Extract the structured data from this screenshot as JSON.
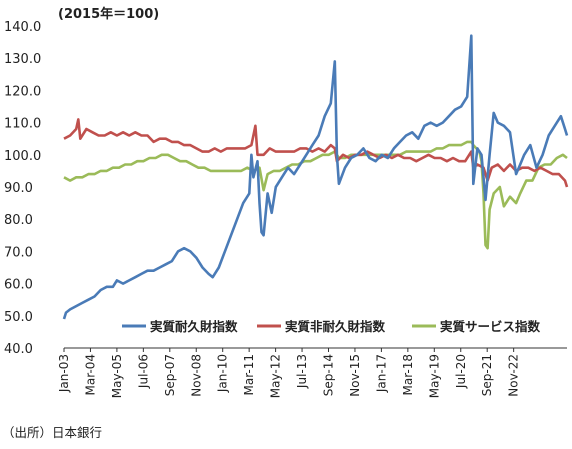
{
  "chart_data": {
    "type": "line",
    "title": "",
    "unit_label": "(2015年＝100)",
    "xlabel": "",
    "ylabel": "",
    "ylim": [
      40.0,
      140.0
    ],
    "yticks": [
      "140.0",
      "130.0",
      "120.0",
      "110.0",
      "100.0",
      "90.0",
      "80.0",
      "70.0",
      "60.0",
      "50.0",
      "40.0"
    ],
    "xtick_labels": [
      "Jan-03",
      "Mar-04",
      "May-05",
      "Jul-06",
      "Sep-07",
      "Nov-08",
      "Jan-10",
      "Mar-11",
      "May-12",
      "Jul-13",
      "Sep-14",
      "Nov-15",
      "Jan-17",
      "Mar-18",
      "May-19",
      "Jul-20",
      "Sep-21",
      "Nov-22"
    ],
    "legend_position": "inside-bottom",
    "grid": false,
    "source_note": "（出所）日本銀行",
    "colors": {
      "line1": "#4a7bb7",
      "line2": "#c0504d",
      "line3": "#9bbb59",
      "axis": "#333333"
    },
    "series": [
      {
        "name": "実質耐久財指数",
        "points": [
          [
            "2003-01",
            49
          ],
          [
            "2003-02",
            51
          ],
          [
            "2003-04",
            52
          ],
          [
            "2003-07",
            53
          ],
          [
            "2003-10",
            54
          ],
          [
            "2004-01",
            55
          ],
          [
            "2004-04",
            56
          ],
          [
            "2004-07",
            58
          ],
          [
            "2004-10",
            59
          ],
          [
            "2005-01",
            59
          ],
          [
            "2005-03",
            61
          ],
          [
            "2005-06",
            60
          ],
          [
            "2005-09",
            61
          ],
          [
            "2005-12",
            62
          ],
          [
            "2006-03",
            63
          ],
          [
            "2006-06",
            64
          ],
          [
            "2006-09",
            64
          ],
          [
            "2006-12",
            65
          ],
          [
            "2007-03",
            66
          ],
          [
            "2007-06",
            67
          ],
          [
            "2007-09",
            70
          ],
          [
            "2007-12",
            71
          ],
          [
            "2008-03",
            70
          ],
          [
            "2008-06",
            68
          ],
          [
            "2008-09",
            65
          ],
          [
            "2008-12",
            63
          ],
          [
            "2009-02",
            62
          ],
          [
            "2009-05",
            65
          ],
          [
            "2009-08",
            70
          ],
          [
            "2009-11",
            75
          ],
          [
            "2010-02",
            80
          ],
          [
            "2010-05",
            85
          ],
          [
            "2010-08",
            88
          ],
          [
            "2010-09",
            100
          ],
          [
            "2010-10",
            93
          ],
          [
            "2010-12",
            98
          ],
          [
            "2011-01",
            85
          ],
          [
            "2011-02",
            76
          ],
          [
            "2011-03",
            75
          ],
          [
            "2011-05",
            88
          ],
          [
            "2011-07",
            82
          ],
          [
            "2011-09",
            90
          ],
          [
            "2011-12",
            93
          ],
          [
            "2012-03",
            96
          ],
          [
            "2012-06",
            94
          ],
          [
            "2012-09",
            97
          ],
          [
            "2012-12",
            100
          ],
          [
            "2013-03",
            103
          ],
          [
            "2013-06",
            106
          ],
          [
            "2013-09",
            112
          ],
          [
            "2013-12",
            116
          ],
          [
            "2014-02",
            129
          ],
          [
            "2014-03",
            100
          ],
          [
            "2014-04",
            91
          ],
          [
            "2014-07",
            96
          ],
          [
            "2014-10",
            99
          ],
          [
            "2015-01",
            100
          ],
          [
            "2015-04",
            102
          ],
          [
            "2015-07",
            99
          ],
          [
            "2015-10",
            98
          ],
          [
            "2016-01",
            100
          ],
          [
            "2016-04",
            99
          ],
          [
            "2016-07",
            102
          ],
          [
            "2016-10",
            104
          ],
          [
            "2017-01",
            106
          ],
          [
            "2017-04",
            107
          ],
          [
            "2017-07",
            105
          ],
          [
            "2017-10",
            109
          ],
          [
            "2018-01",
            110
          ],
          [
            "2018-04",
            109
          ],
          [
            "2018-07",
            110
          ],
          [
            "2018-10",
            112
          ],
          [
            "2019-01",
            114
          ],
          [
            "2019-04",
            115
          ],
          [
            "2019-07",
            118
          ],
          [
            "2019-09",
            137
          ],
          [
            "2019-10",
            91
          ],
          [
            "2019-12",
            102
          ],
          [
            "2020-02",
            100
          ],
          [
            "2020-04",
            86
          ],
          [
            "2020-06",
            100
          ],
          [
            "2020-08",
            113
          ],
          [
            "2020-10",
            110
          ],
          [
            "2021-01",
            109
          ],
          [
            "2021-04",
            107
          ],
          [
            "2021-07",
            94
          ],
          [
            "2021-09",
            97
          ],
          [
            "2021-11",
            100
          ],
          [
            "2022-02",
            103
          ],
          [
            "2022-05",
            96
          ],
          [
            "2022-08",
            100
          ],
          [
            "2022-11",
            106
          ],
          [
            "2023-02",
            109
          ],
          [
            "2023-05",
            112
          ],
          [
            "2023-07",
            108
          ],
          [
            "2023-08",
            106
          ]
        ]
      },
      {
        "name": "実質非耐久財指数",
        "points": [
          [
            "2003-01",
            105
          ],
          [
            "2003-04",
            106
          ],
          [
            "2003-07",
            108
          ],
          [
            "2003-08",
            111
          ],
          [
            "2003-09",
            105
          ],
          [
            "2003-12",
            108
          ],
          [
            "2004-03",
            107
          ],
          [
            "2004-06",
            106
          ],
          [
            "2004-09",
            106
          ],
          [
            "2004-12",
            107
          ],
          [
            "2005-03",
            106
          ],
          [
            "2005-06",
            107
          ],
          [
            "2005-09",
            106
          ],
          [
            "2005-12",
            107
          ],
          [
            "2006-03",
            106
          ],
          [
            "2006-06",
            106
          ],
          [
            "2006-09",
            104
          ],
          [
            "2006-12",
            105
          ],
          [
            "2007-03",
            105
          ],
          [
            "2007-06",
            104
          ],
          [
            "2007-09",
            104
          ],
          [
            "2007-12",
            103
          ],
          [
            "2008-03",
            103
          ],
          [
            "2008-06",
            102
          ],
          [
            "2008-09",
            101
          ],
          [
            "2008-12",
            101
          ],
          [
            "2009-03",
            102
          ],
          [
            "2009-06",
            101
          ],
          [
            "2009-09",
            102
          ],
          [
            "2009-12",
            102
          ],
          [
            "2010-03",
            102
          ],
          [
            "2010-06",
            102
          ],
          [
            "2010-09",
            103
          ],
          [
            "2010-11",
            109
          ],
          [
            "2010-12",
            100
          ],
          [
            "2011-03",
            100
          ],
          [
            "2011-06",
            102
          ],
          [
            "2011-09",
            101
          ],
          [
            "2011-12",
            101
          ],
          [
            "2012-03",
            101
          ],
          [
            "2012-06",
            101
          ],
          [
            "2012-09",
            102
          ],
          [
            "2012-12",
            102
          ],
          [
            "2013-03",
            101
          ],
          [
            "2013-06",
            102
          ],
          [
            "2013-09",
            101
          ],
          [
            "2013-12",
            103
          ],
          [
            "2014-02",
            102
          ],
          [
            "2014-03",
            98
          ],
          [
            "2014-06",
            100
          ],
          [
            "2014-09",
            99
          ],
          [
            "2014-12",
            100
          ],
          [
            "2015-03",
            100
          ],
          [
            "2015-06",
            101
          ],
          [
            "2015-09",
            100
          ],
          [
            "2015-12",
            99
          ],
          [
            "2016-03",
            100
          ],
          [
            "2016-06",
            99
          ],
          [
            "2016-09",
            100
          ],
          [
            "2016-12",
            99
          ],
          [
            "2017-03",
            99
          ],
          [
            "2017-06",
            98
          ],
          [
            "2017-09",
            99
          ],
          [
            "2017-12",
            100
          ],
          [
            "2018-03",
            99
          ],
          [
            "2018-06",
            99
          ],
          [
            "2018-09",
            98
          ],
          [
            "2018-12",
            99
          ],
          [
            "2019-03",
            98
          ],
          [
            "2019-06",
            98
          ],
          [
            "2019-09",
            101
          ],
          [
            "2019-10",
            96
          ],
          [
            "2019-12",
            97
          ],
          [
            "2020-03",
            96
          ],
          [
            "2020-05",
            92
          ],
          [
            "2020-07",
            96
          ],
          [
            "2020-10",
            97
          ],
          [
            "2021-01",
            95
          ],
          [
            "2021-04",
            97
          ],
          [
            "2021-07",
            95
          ],
          [
            "2021-10",
            96
          ],
          [
            "2022-01",
            96
          ],
          [
            "2022-04",
            95
          ],
          [
            "2022-07",
            96
          ],
          [
            "2022-10",
            95
          ],
          [
            "2023-01",
            94
          ],
          [
            "2023-04",
            94
          ],
          [
            "2023-07",
            92
          ],
          [
            "2023-08",
            90
          ]
        ]
      },
      {
        "name": "実質サービス指数",
        "points": [
          [
            "2003-01",
            93
          ],
          [
            "2003-04",
            92
          ],
          [
            "2003-07",
            93
          ],
          [
            "2003-10",
            93
          ],
          [
            "2004-01",
            94
          ],
          [
            "2004-04",
            94
          ],
          [
            "2004-07",
            95
          ],
          [
            "2004-10",
            95
          ],
          [
            "2005-01",
            96
          ],
          [
            "2005-04",
            96
          ],
          [
            "2005-07",
            97
          ],
          [
            "2005-10",
            97
          ],
          [
            "2006-01",
            98
          ],
          [
            "2006-04",
            98
          ],
          [
            "2006-07",
            99
          ],
          [
            "2006-10",
            99
          ],
          [
            "2007-01",
            100
          ],
          [
            "2007-04",
            100
          ],
          [
            "2007-07",
            99
          ],
          [
            "2007-10",
            98
          ],
          [
            "2008-01",
            98
          ],
          [
            "2008-04",
            97
          ],
          [
            "2008-07",
            96
          ],
          [
            "2008-10",
            96
          ],
          [
            "2009-01",
            95
          ],
          [
            "2009-04",
            95
          ],
          [
            "2009-07",
            95
          ],
          [
            "2009-10",
            95
          ],
          [
            "2010-01",
            95
          ],
          [
            "2010-04",
            95
          ],
          [
            "2010-07",
            96
          ],
          [
            "2010-10",
            95
          ],
          [
            "2011-01",
            96
          ],
          [
            "2011-03",
            89
          ],
          [
            "2011-05",
            94
          ],
          [
            "2011-08",
            95
          ],
          [
            "2011-11",
            95
          ],
          [
            "2012-02",
            96
          ],
          [
            "2012-05",
            97
          ],
          [
            "2012-08",
            97
          ],
          [
            "2012-11",
            98
          ],
          [
            "2013-02",
            98
          ],
          [
            "2013-05",
            99
          ],
          [
            "2013-08",
            100
          ],
          [
            "2013-11",
            100
          ],
          [
            "2014-02",
            101
          ],
          [
            "2014-04",
            99
          ],
          [
            "2014-07",
            99
          ],
          [
            "2014-10",
            100
          ],
          [
            "2015-01",
            100
          ],
          [
            "2015-04",
            100
          ],
          [
            "2015-07",
            100
          ],
          [
            "2015-10",
            100
          ],
          [
            "2016-01",
            100
          ],
          [
            "2016-04",
            100
          ],
          [
            "2016-07",
            100
          ],
          [
            "2016-10",
            100
          ],
          [
            "2017-01",
            101
          ],
          [
            "2017-04",
            101
          ],
          [
            "2017-07",
            101
          ],
          [
            "2017-10",
            101
          ],
          [
            "2018-01",
            101
          ],
          [
            "2018-04",
            102
          ],
          [
            "2018-07",
            102
          ],
          [
            "2018-10",
            103
          ],
          [
            "2019-01",
            103
          ],
          [
            "2019-04",
            103
          ],
          [
            "2019-07",
            104
          ],
          [
            "2019-09",
            104
          ],
          [
            "2019-10",
            103
          ],
          [
            "2020-01",
            101
          ],
          [
            "2020-02",
            98
          ],
          [
            "2020-03",
            88
          ],
          [
            "2020-04",
            72
          ],
          [
            "2020-05",
            71
          ],
          [
            "2020-06",
            83
          ],
          [
            "2020-08",
            88
          ],
          [
            "2020-11",
            90
          ],
          [
            "2021-01",
            84
          ],
          [
            "2021-04",
            87
          ],
          [
            "2021-07",
            85
          ],
          [
            "2021-09",
            88
          ],
          [
            "2021-12",
            92
          ],
          [
            "2022-03",
            92
          ],
          [
            "2022-06",
            96
          ],
          [
            "2022-09",
            97
          ],
          [
            "2022-12",
            97
          ],
          [
            "2023-03",
            99
          ],
          [
            "2023-06",
            100
          ],
          [
            "2023-08",
            99
          ]
        ]
      }
    ]
  }
}
